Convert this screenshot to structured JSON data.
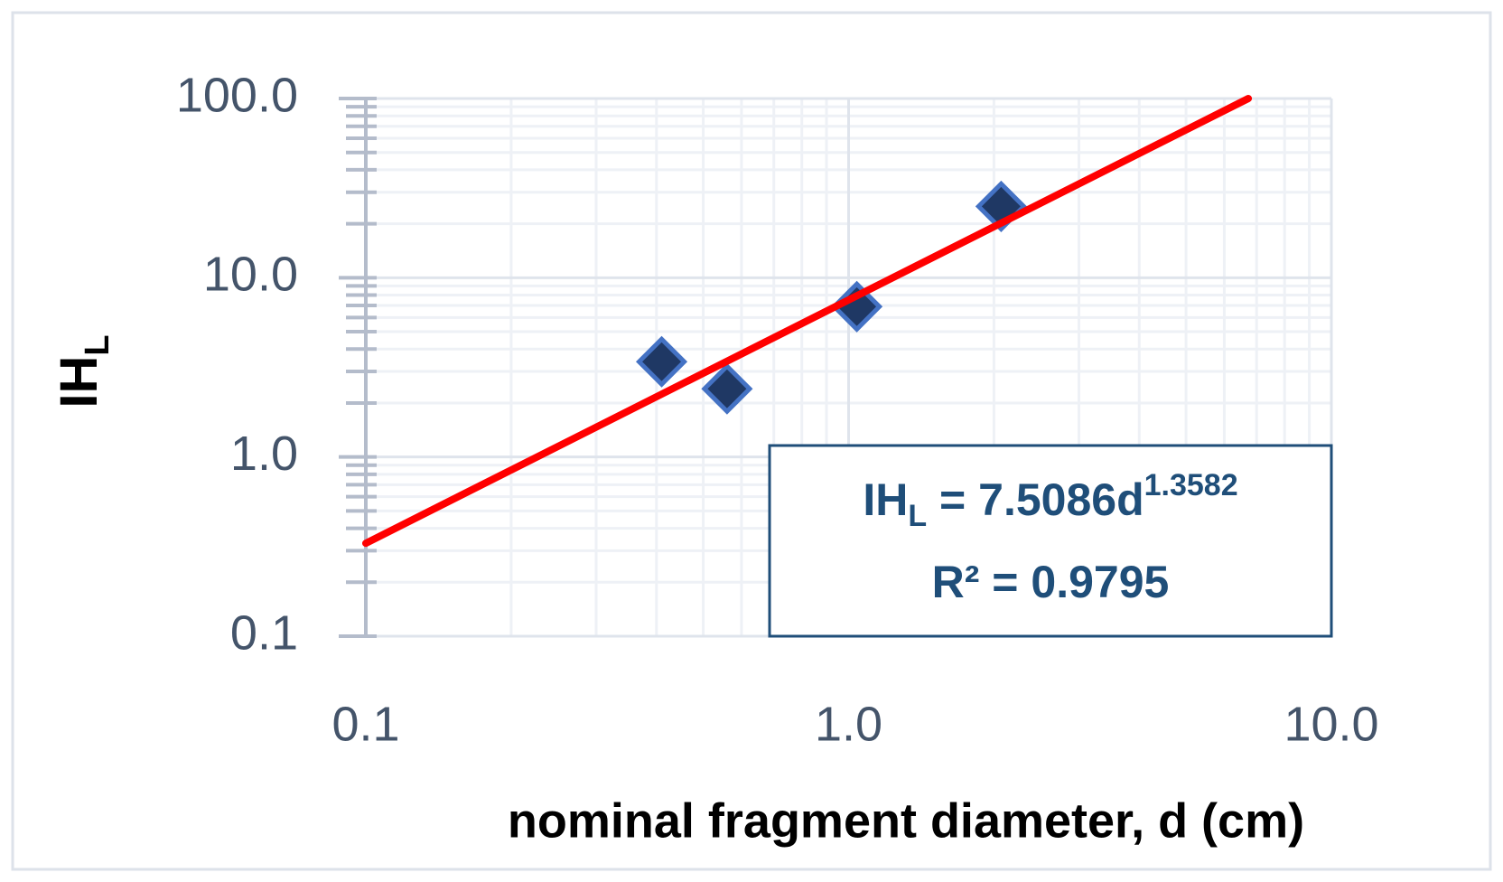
{
  "chart_data": {
    "type": "scatter",
    "x_label": "nominal fragment diameter, d (cm)",
    "y_label": {
      "text": "IH",
      "subscript": "L"
    },
    "x": [
      0.41,
      0.56,
      1.04,
      2.07
    ],
    "series": [
      {
        "color": "#1f3864",
        "values": [
          3.4,
          2.4,
          6.9,
          25
        ]
      }
    ],
    "trendline": {
      "color": "#ff0000",
      "x": [
        0.1,
        6.73
      ],
      "values": [
        0.33,
        100
      ]
    },
    "equation": {
      "text": "IH",
      "subscript": "L",
      "rhs": " = 7.5086d",
      "exponent": "1.3582"
    },
    "r_squared": "R²  = 0.9795",
    "xscale": "log",
    "yscale": "log",
    "xlim": [
      0.1,
      10
    ],
    "ylim": [
      0.1,
      100
    ],
    "xticks": [
      0.1,
      {
        "value": 1,
        "label": "1.0"
      },
      {
        "value": 10,
        "label": "10.0"
      }
    ],
    "yticks": [
      0.1,
      {
        "value": 1,
        "label": "1.0"
      },
      {
        "value": 10,
        "label": "10.0"
      },
      {
        "value": 100,
        "label": "100.0"
      }
    ],
    "grid": true
  }
}
